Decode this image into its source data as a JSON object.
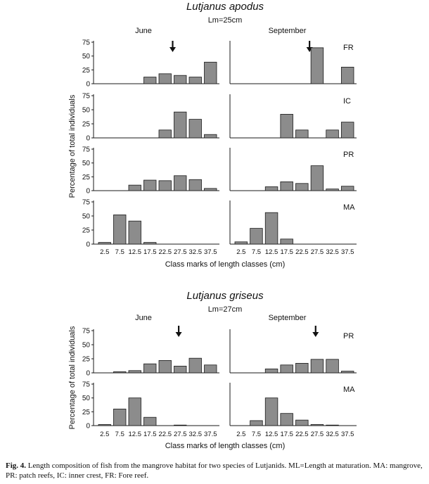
{
  "caption": {
    "label": "Fig. 4.",
    "text": "Length composition of fish from the mangrove habitat for two species of Lutjanids. ML=Length at maturation. MA: mangrove, PR: patch reefs, IC: inner crest, FR: Fore reef."
  },
  "colors": {
    "bar": "#8c8c8c",
    "bar_edge": "#1a1a1a",
    "axis": "#1a1a1a"
  },
  "chart_data": [
    {
      "type": "bar",
      "title": "Lutjanus apodus",
      "subtitle": "Lm=25cm",
      "column_titles": [
        "June",
        "September"
      ],
      "xlabel": "Class marks of length classes (cm)",
      "ylabel": "Percentage of total individuals",
      "categories": [
        "2.5",
        "7.5",
        "12.5",
        "17.5",
        "22.5",
        "27.5",
        "32.5",
        "37.5"
      ],
      "ylim": [
        0,
        75
      ],
      "yticks": [
        0,
        25,
        50,
        75
      ],
      "maturity_length_cm": 25,
      "panels": [
        {
          "habitat": "FR",
          "month": "June",
          "values": [
            0,
            0,
            0,
            12,
            18,
            15,
            12,
            39
          ]
        },
        {
          "habitat": "FR",
          "month": "September",
          "values": [
            0,
            0,
            0,
            0,
            0,
            65,
            0,
            30
          ]
        },
        {
          "habitat": "IC",
          "month": "June",
          "values": [
            0,
            0,
            0,
            0,
            14,
            46,
            33,
            6
          ]
        },
        {
          "habitat": "IC",
          "month": "September",
          "values": [
            0,
            0,
            0,
            42,
            14,
            0,
            14,
            28
          ]
        },
        {
          "habitat": "PR",
          "month": "June",
          "values": [
            0,
            0,
            10,
            19,
            18,
            27,
            20,
            4
          ]
        },
        {
          "habitat": "PR",
          "month": "September",
          "values": [
            0,
            0,
            7,
            16,
            13,
            45,
            3,
            8
          ]
        },
        {
          "habitat": "MA",
          "month": "June",
          "values": [
            3,
            52,
            41,
            3,
            0,
            0,
            0,
            0
          ]
        },
        {
          "habitat": "MA",
          "month": "September",
          "values": [
            4,
            28,
            56,
            9,
            0,
            0,
            0,
            0
          ]
        }
      ]
    },
    {
      "type": "bar",
      "title": "Lutjanus griseus",
      "subtitle": "Lm=27cm",
      "column_titles": [
        "June",
        "September"
      ],
      "xlabel": "Class marks of length classes (cm)",
      "ylabel": "Percentage of total individuals",
      "categories": [
        "2.5",
        "7.5",
        "12.5",
        "17.5",
        "22.5",
        "27.5",
        "32.5",
        "37.5"
      ],
      "ylim": [
        0,
        75
      ],
      "yticks": [
        0,
        25,
        50,
        75
      ],
      "maturity_length_cm": 27,
      "panels": [
        {
          "habitat": "PR",
          "month": "June",
          "values": [
            0,
            2,
            4,
            16,
            22,
            12,
            26,
            14
          ]
        },
        {
          "habitat": "PR",
          "month": "September",
          "values": [
            0,
            0,
            7,
            14,
            17,
            24,
            24,
            3
          ]
        },
        {
          "habitat": "MA",
          "month": "June",
          "values": [
            2,
            30,
            50,
            15,
            0,
            1,
            0,
            0
          ]
        },
        {
          "habitat": "MA",
          "month": "September",
          "values": [
            0,
            9,
            50,
            22,
            10,
            2,
            1,
            0
          ]
        }
      ]
    }
  ]
}
